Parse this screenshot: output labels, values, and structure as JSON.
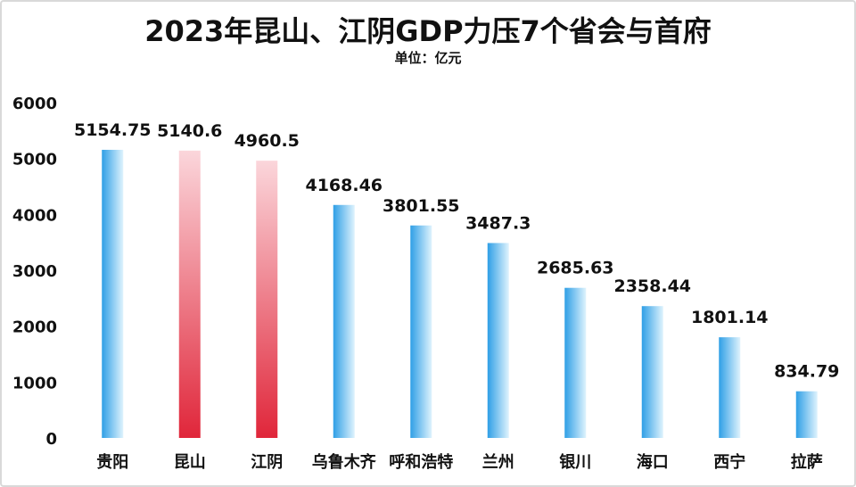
{
  "chart_data": {
    "type": "bar",
    "title": "2023年昆山、江阴GDP力压7个省会与首府",
    "subtitle": "单位：亿元",
    "categories": [
      "贵阳",
      "昆山",
      "江阴",
      "乌鲁木齐",
      "呼和浩特",
      "兰州",
      "银川",
      "海口",
      "西宁",
      "拉萨"
    ],
    "values": [
      5154.75,
      5140.6,
      4960.5,
      4168.46,
      3801.55,
      3487.3,
      2685.63,
      2358.44,
      1801.14,
      834.79
    ],
    "value_labels": [
      "5154.75",
      "5140.6",
      "4960.5",
      "4168.46",
      "3801.55",
      "3487.3",
      "2685.63",
      "2358.44",
      "1801.14",
      "834.79"
    ],
    "highlight": [
      false,
      true,
      true,
      false,
      false,
      false,
      false,
      false,
      false,
      false
    ],
    "ylim": [
      0,
      6000
    ],
    "yticks": [
      0,
      1000,
      2000,
      3000,
      4000,
      5000,
      6000
    ],
    "grid": false,
    "legend": "none",
    "colors": {
      "blue_dark": "#2f9fe6",
      "blue_light": "#dff3fd",
      "red_dark": "#e0263a",
      "red_light": "#fbd6db"
    }
  }
}
